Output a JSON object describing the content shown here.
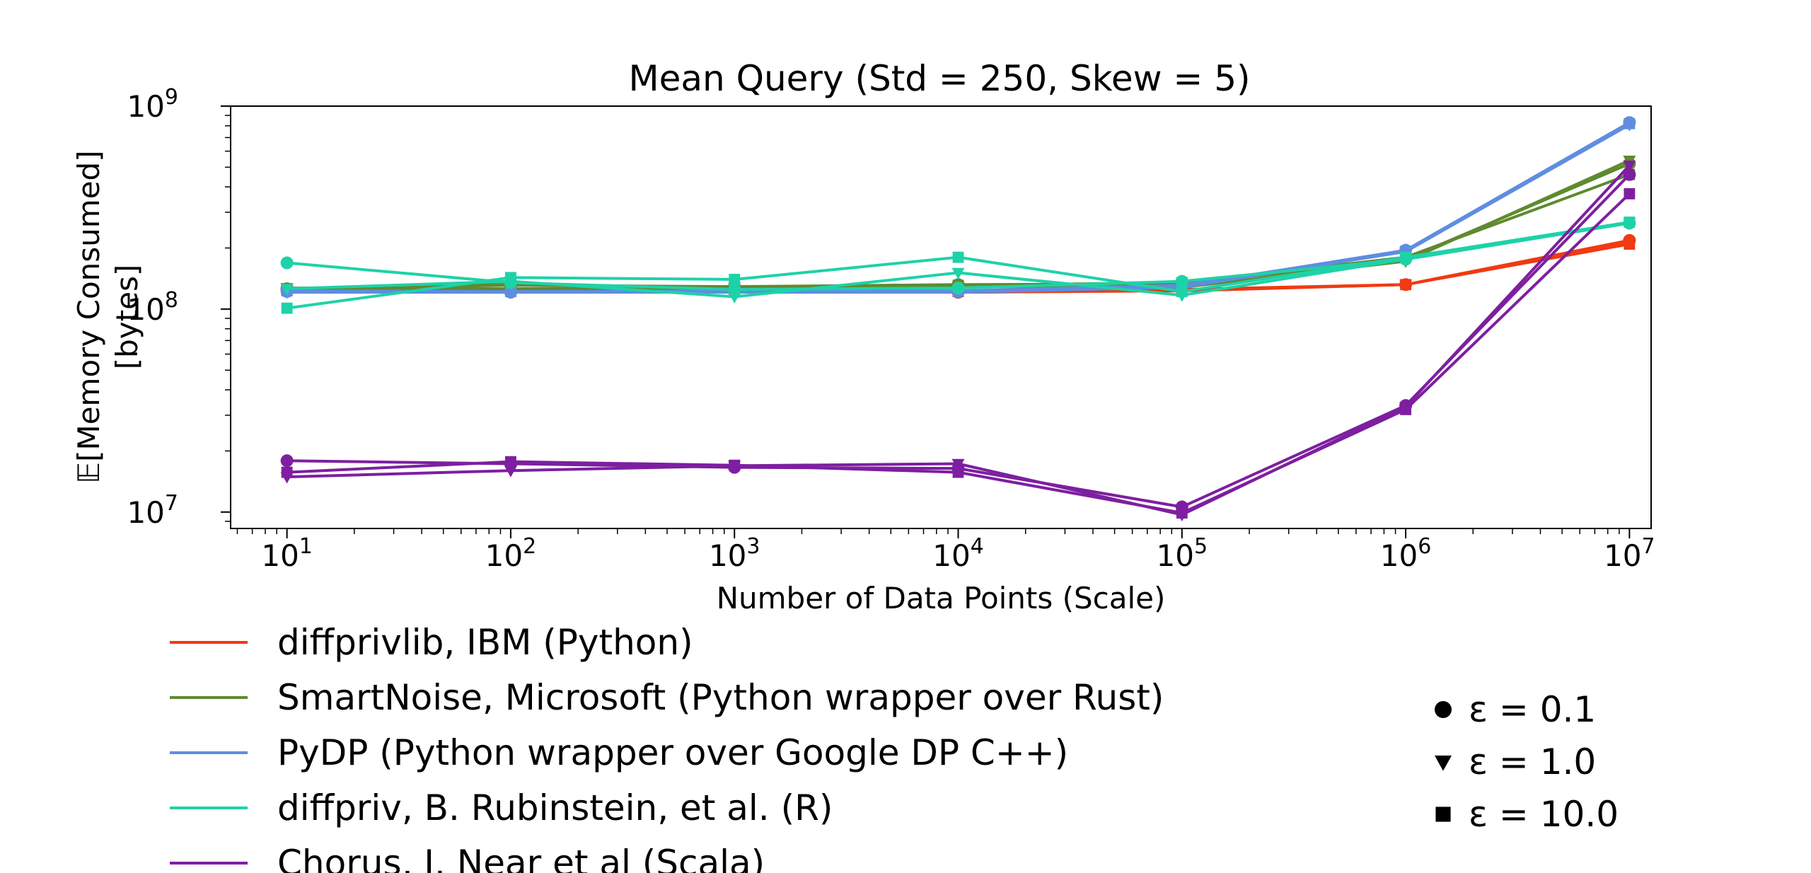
{
  "chart_data": {
    "type": "line",
    "title": "Mean Query (Std = 250, Skew = 5)",
    "xlabel": "Number of Data Points (Scale)",
    "ylabel_line1": "𝔼[Memory Consumed]",
    "ylabel_line2": "[bytes]",
    "x_scale": "log",
    "y_scale": "log",
    "xlim": [
      5.6,
      12500000
    ],
    "ylim": [
      8300000,
      1000000000
    ],
    "x": [
      10,
      100,
      1000,
      10000,
      100000,
      1000000,
      10000000
    ],
    "x_ticks": [
      {
        "base": "10",
        "exp": "1",
        "value": 10
      },
      {
        "base": "10",
        "exp": "2",
        "value": 100
      },
      {
        "base": "10",
        "exp": "3",
        "value": 1000
      },
      {
        "base": "10",
        "exp": "4",
        "value": 10000
      },
      {
        "base": "10",
        "exp": "5",
        "value": 100000
      },
      {
        "base": "10",
        "exp": "6",
        "value": 1000000
      },
      {
        "base": "10",
        "exp": "7",
        "value": 10000000
      }
    ],
    "y_ticks": [
      {
        "base": "10",
        "exp": "7",
        "value": 10000000
      },
      {
        "base": "10",
        "exp": "8",
        "value": 100000000
      },
      {
        "base": "10",
        "exp": "9",
        "value": 1000000000
      }
    ],
    "series": [
      {
        "name": "diffprivlib, IBM (Python)",
        "color": "#f03a12",
        "marker": "circle",
        "values": [
          125000000,
          122000000,
          123000000,
          121000000,
          124000000,
          132000000,
          218000000
        ]
      },
      {
        "name": "diffprivlib, IBM (Python)",
        "color": "#f03a12",
        "marker": "triangle",
        "values": [
          124000000,
          122000000,
          123000000,
          121000000,
          123000000,
          132000000,
          212000000
        ]
      },
      {
        "name": "diffprivlib, IBM (Python)",
        "color": "#f03a12",
        "marker": "square",
        "values": [
          124000000,
          123000000,
          124000000,
          122000000,
          125000000,
          132000000,
          209000000
        ]
      },
      {
        "name": "SmartNoise, Microsoft (Python wrapper over Rust)",
        "color": "#5f8a2f",
        "marker": "circle",
        "values": [
          126000000,
          131000000,
          129000000,
          132000000,
          133000000,
          176000000,
          520000000
        ]
      },
      {
        "name": "SmartNoise, Microsoft (Python wrapper over Rust)",
        "color": "#5f8a2f",
        "marker": "triangle",
        "values": [
          127000000,
          126000000,
          128000000,
          129000000,
          128000000,
          172000000,
          540000000
        ]
      },
      {
        "name": "SmartNoise, Microsoft (Python wrapper over Rust)",
        "color": "#5f8a2f",
        "marker": "square",
        "values": [
          126000000,
          133000000,
          127000000,
          131000000,
          135000000,
          180000000,
          460000000
        ]
      },
      {
        "name": "PyDP (Python wrapper over Google DP C++)",
        "color": "#5f8de0",
        "marker": "circle",
        "values": [
          122000000,
          121000000,
          122000000,
          122000000,
          130000000,
          195000000,
          830000000
        ]
      },
      {
        "name": "PyDP (Python wrapper over Google DP C++)",
        "color": "#5f8de0",
        "marker": "triangle",
        "values": [
          121000000,
          121000000,
          121000000,
          121000000,
          128000000,
          192000000,
          810000000
        ]
      },
      {
        "name": "PyDP (Python wrapper over Google DP C++)",
        "color": "#5f8de0",
        "marker": "square",
        "values": [
          123000000,
          122000000,
          123000000,
          123000000,
          131000000,
          193000000,
          820000000
        ]
      },
      {
        "name": "diffpriv, B. Rubinstein, et al. (R)",
        "color": "#1ed2a8",
        "marker": "circle",
        "values": [
          169000000,
          135000000,
          125000000,
          127000000,
          137000000,
          176000000,
          265000000
        ]
      },
      {
        "name": "diffpriv, B. Rubinstein, et al. (R)",
        "color": "#1ed2a8",
        "marker": "triangle",
        "values": [
          126000000,
          137000000,
          115000000,
          151000000,
          117000000,
          176000000,
          266000000
        ]
      },
      {
        "name": "diffpriv, B. Rubinstein, et al. (R)",
        "color": "#1ed2a8",
        "marker": "square",
        "values": [
          101000000,
          143000000,
          140000000,
          180000000,
          122000000,
          180000000,
          268000000
        ]
      },
      {
        "name": "Chorus, J. Near et al (Scala)",
        "color": "#7d1fa0",
        "marker": "circle",
        "values": [
          17900000,
          17300000,
          16600000,
          16400000,
          10600000,
          33500000,
          460000000
        ]
      },
      {
        "name": "Chorus, J. Near et al (Scala)",
        "color": "#7d1fa0",
        "marker": "triangle",
        "values": [
          14900000,
          16000000,
          16900000,
          17300000,
          9700000,
          33000000,
          510000000
        ]
      },
      {
        "name": "Chorus, J. Near et al (Scala)",
        "color": "#7d1fa0",
        "marker": "square",
        "values": [
          15700000,
          17700000,
          17000000,
          15700000,
          9900000,
          32000000,
          370000000
        ]
      }
    ],
    "legend_libraries": [
      {
        "label": "diffprivlib, IBM (Python)",
        "color": "#f03a12"
      },
      {
        "label": "SmartNoise, Microsoft (Python wrapper over Rust)",
        "color": "#5f8a2f"
      },
      {
        "label": "PyDP (Python wrapper over Google DP C++)",
        "color": "#5f8de0"
      },
      {
        "label": "diffpriv, B. Rubinstein, et al. (R)",
        "color": "#1ed2a8"
      },
      {
        "label": "Chorus, J. Near et al (Scala)",
        "color": "#7d1fa0"
      }
    ],
    "legend_epsilon": [
      {
        "label": "ε = 0.1",
        "marker": "circle"
      },
      {
        "label": "ε = 1.0",
        "marker": "triangle"
      },
      {
        "label": "ε = 10.0",
        "marker": "square"
      }
    ]
  }
}
